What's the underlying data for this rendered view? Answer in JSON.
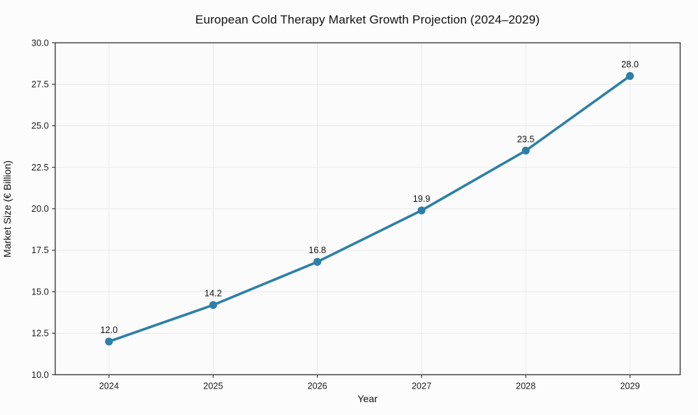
{
  "chart_data": {
    "type": "line",
    "title": "European Cold Therapy Market Growth Projection (2024–2029)",
    "xlabel": "Year",
    "ylabel": "Market Size (€ Billion)",
    "categories": [
      "2024",
      "2025",
      "2026",
      "2027",
      "2028",
      "2029"
    ],
    "series": [
      {
        "name": "Market Size",
        "values": [
          12.0,
          14.2,
          16.8,
          19.9,
          23.5,
          28.0
        ]
      }
    ],
    "point_labels": [
      "12.0",
      "14.2",
      "16.8",
      "19.9",
      "23.5",
      "28.0"
    ],
    "y_ticks": [
      10.0,
      12.5,
      15.0,
      17.5,
      20.0,
      22.5,
      25.0,
      27.5,
      30.0
    ],
    "y_tick_labels": [
      "10.0",
      "12.5",
      "15.0",
      "17.5",
      "20.0",
      "22.5",
      "25.0",
      "27.5",
      "30.0"
    ],
    "ylim": [
      10.0,
      30.0
    ],
    "grid": true,
    "legend_position": "none",
    "colors": {
      "line": "#2d7fa8",
      "marker": "#2d7fa8",
      "spine": "#3d3d3d",
      "grid": "#e9e9e9",
      "tick_text": "#1c1c1c",
      "annotation_text": "#111111",
      "figure_bg": "#fcfcfc",
      "plot_bg": "#fbfbfb"
    }
  }
}
